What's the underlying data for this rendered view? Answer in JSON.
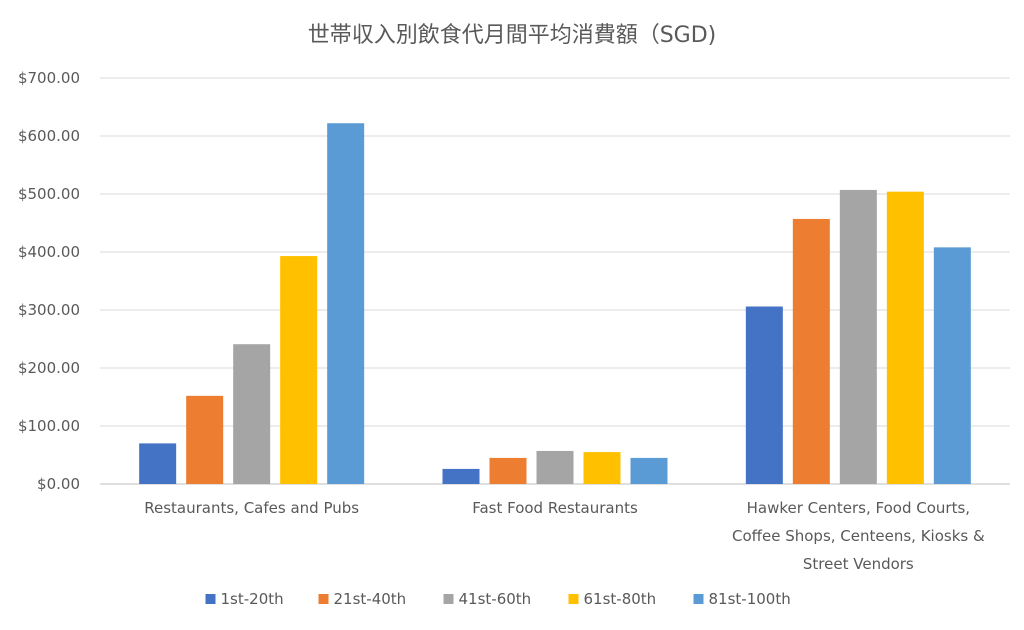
{
  "chart_data": {
    "type": "bar",
    "title": "世帯収入別飲食代月間平均消費額（SGD)",
    "xlabel": "",
    "ylabel": "",
    "ylim": [
      0,
      700
    ],
    "ytick_step": 100,
    "ytick_labels": [
      "$0.00",
      "$100.00",
      "$200.00",
      "$300.00",
      "$400.00",
      "$500.00",
      "$600.00",
      "$700.00"
    ],
    "grid": true,
    "legend_position": "bottom",
    "categories": [
      [
        "Restaurants, Cafes and Pubs"
      ],
      [
        "Fast Food Restaurants"
      ],
      [
        "Hawker Centers, Food Courts,",
        "Coffee Shops, Centeens, Kiosks &",
        "Street Vendors"
      ]
    ],
    "series": [
      {
        "name": "1st-20th",
        "color": "#4472c4",
        "values": [
          70,
          26,
          306
        ]
      },
      {
        "name": "21st-40th",
        "color": "#ed7d31",
        "values": [
          152,
          45,
          457
        ]
      },
      {
        "name": "41st-60th",
        "color": "#a5a5a5",
        "values": [
          241,
          57,
          507
        ]
      },
      {
        "name": "61st-80th",
        "color": "#ffc000",
        "values": [
          393,
          55,
          504
        ]
      },
      {
        "name": "81st-100th",
        "color": "#5b9bd5",
        "values": [
          622,
          45,
          408
        ]
      }
    ]
  }
}
